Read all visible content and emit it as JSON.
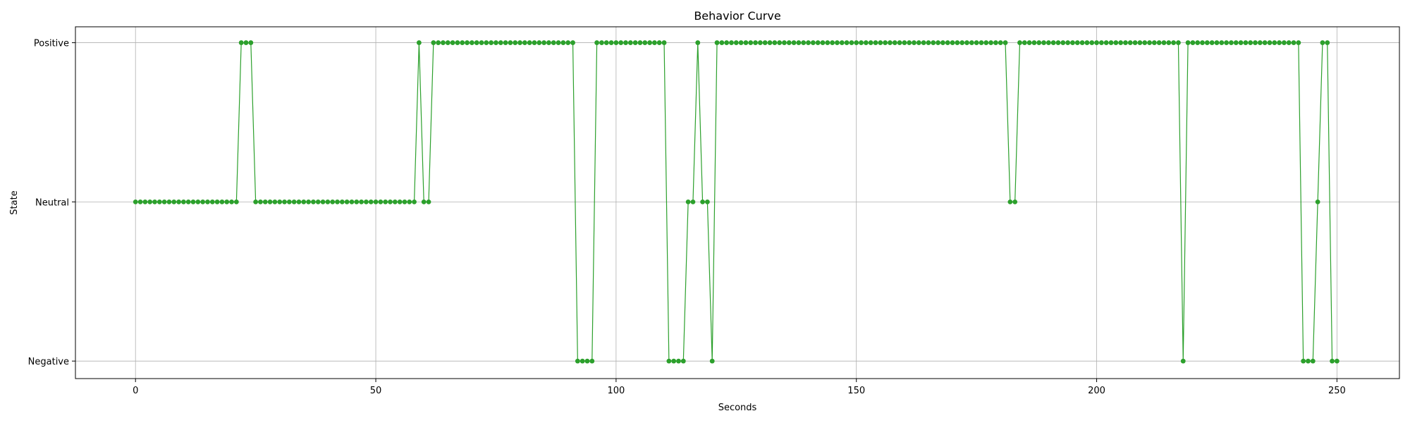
{
  "chart_data": {
    "type": "line",
    "title": "Behavior Curve",
    "xlabel": "Seconds",
    "ylabel": "State",
    "xlim": [
      -12.5,
      263
    ],
    "ylim": [
      -0.11,
      2.1
    ],
    "x_ticks": [
      0,
      50,
      100,
      150,
      200,
      250
    ],
    "y_ticks": [
      {
        "value": 0,
        "label": "Negative"
      },
      {
        "value": 1,
        "label": "Neutral"
      },
      {
        "value": 2,
        "label": "Positive"
      }
    ],
    "grid": true,
    "legend": "none",
    "series": [
      {
        "color": "#2ca02c",
        "marker": "circle",
        "runs": [
          {
            "from": 0,
            "to": 21,
            "value": 1
          },
          {
            "from": 22,
            "to": 24,
            "value": 2
          },
          {
            "from": 25,
            "to": 58,
            "value": 1
          },
          {
            "from": 59,
            "to": 59,
            "value": 2
          },
          {
            "from": 60,
            "to": 61,
            "value": 1
          },
          {
            "from": 62,
            "to": 91,
            "value": 2
          },
          {
            "from": 92,
            "to": 95,
            "value": 0
          },
          {
            "from": 96,
            "to": 110,
            "value": 2
          },
          {
            "from": 111,
            "to": 114,
            "value": 0
          },
          {
            "from": 115,
            "to": 116,
            "value": 1
          },
          {
            "from": 117,
            "to": 117,
            "value": 2
          },
          {
            "from": 118,
            "to": 119,
            "value": 1
          },
          {
            "from": 120,
            "to": 120,
            "value": 0
          },
          {
            "from": 121,
            "to": 181,
            "value": 2
          },
          {
            "from": 182,
            "to": 183,
            "value": 1
          },
          {
            "from": 184,
            "to": 217,
            "value": 2
          },
          {
            "from": 218,
            "to": 218,
            "value": 0
          },
          {
            "from": 219,
            "to": 242,
            "value": 2
          },
          {
            "from": 243,
            "to": 245,
            "value": 0
          },
          {
            "from": 246,
            "to": 246,
            "value": 1
          },
          {
            "from": 247,
            "to": 248,
            "value": 2
          },
          {
            "from": 249,
            "to": 250,
            "value": 0
          }
        ]
      }
    ]
  }
}
